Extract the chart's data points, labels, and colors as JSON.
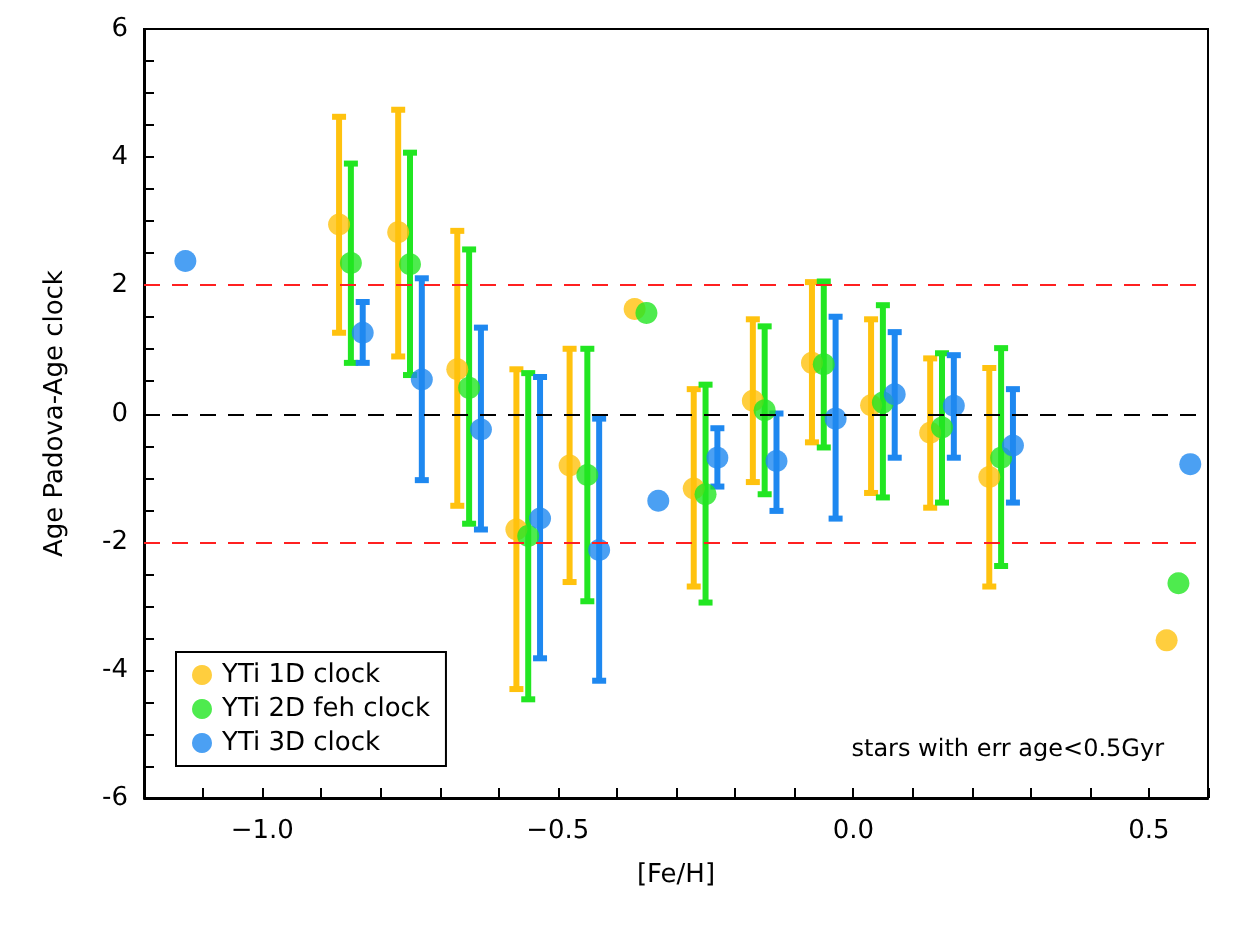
{
  "chart_data": {
    "type": "scatter",
    "xlabel": "[Fe/H]",
    "ylabel": "Age Padova-Age clock",
    "annotations": [
      "stars with err age<0.5Gyr"
    ],
    "xlim": [
      -1.2,
      0.6
    ],
    "ylim": [
      -6,
      6
    ],
    "xticks": [
      {
        "value": -1.2,
        "label": null
      },
      {
        "value": -1.1,
        "label": null
      },
      {
        "value": -1,
        "label": "−1.0"
      },
      {
        "value": -0.9,
        "label": null
      },
      {
        "value": -0.8,
        "label": null
      },
      {
        "value": -0.7,
        "label": null
      },
      {
        "value": -0.6,
        "label": null
      },
      {
        "value": -0.5,
        "label": "−0.5"
      },
      {
        "value": -0.4,
        "label": null
      },
      {
        "value": -0.3,
        "label": null
      },
      {
        "value": -0.2,
        "label": null
      },
      {
        "value": -0.1,
        "label": null
      },
      {
        "value": 0,
        "label": "0.0"
      },
      {
        "value": 0.1,
        "label": null
      },
      {
        "value": 0.2,
        "label": null
      },
      {
        "value": 0.3,
        "label": null
      },
      {
        "value": 0.4,
        "label": null
      },
      {
        "value": 0.5,
        "label": "0.5"
      },
      {
        "value": 0.6,
        "label": null
      }
    ],
    "yticks": [
      -6,
      {
        "value": -5.5,
        "label": null
      },
      {
        "value": -5,
        "label": null
      },
      {
        "value": -4.5,
        "label": null
      },
      -4,
      {
        "value": -3.5,
        "label": null
      },
      {
        "value": -3,
        "label": null
      },
      {
        "value": -2.5,
        "label": null
      },
      -2,
      {
        "value": -1.5,
        "label": null
      },
      {
        "value": -1,
        "label": null
      },
      {
        "value": -0.5,
        "label": null
      },
      0,
      {
        "value": 0.5,
        "label": null
      },
      {
        "value": 1,
        "label": null
      },
      {
        "value": 1.5,
        "label": null
      },
      2,
      {
        "value": 2.5,
        "label": null
      },
      {
        "value": 3,
        "label": null
      },
      {
        "value": 3.5,
        "label": null
      },
      4,
      {
        "value": 4.5,
        "label": null
      },
      {
        "value": 5,
        "label": null
      },
      {
        "value": 5.5,
        "label": null
      },
      6
    ],
    "grid": false,
    "legend": "bottom left",
    "marker": "circle",
    "ref_lines": [
      {
        "axis": "y",
        "value": 2,
        "color": "#ff2020",
        "line_style": "dashed"
      },
      {
        "axis": "y",
        "value": 0,
        "color": "#000000",
        "line_style": "dashed"
      },
      {
        "axis": "y",
        "value": -2,
        "color": "#ff2020",
        "line_style": "dashed"
      }
    ],
    "series": [
      {
        "name": "YTi 1D clock",
        "color": "#ffc20e",
        "x": [
          -0.87,
          -0.77,
          -0.67,
          -0.57,
          -0.48,
          -0.37,
          -0.27,
          -0.17,
          -0.07,
          0.03,
          0.13,
          0.23,
          0.53
        ],
        "values": [
          2.95,
          2.83,
          0.69,
          -1.81,
          -0.81,
          1.63,
          -1.17,
          0.2,
          0.79,
          0.13,
          -0.3,
          -0.99,
          -3.54
        ],
        "errors": [
          [
            1.26,
            4.63
          ],
          [
            0.89,
            4.74
          ],
          [
            -1.44,
            2.85
          ],
          [
            -4.3,
            0.69
          ],
          [
            -2.63,
            1.01
          ],
          null,
          [
            -2.7,
            0.38
          ],
          [
            -1.07,
            1.47
          ],
          [
            -0.45,
            2.05
          ],
          [
            -1.24,
            1.47
          ],
          [
            -1.47,
            0.86
          ],
          [
            -2.7,
            0.71
          ],
          null
        ]
      },
      {
        "name": "YTi 2D feh clock",
        "color": "#22e622",
        "x": [
          -0.85,
          -0.75,
          -0.65,
          -0.55,
          -0.45,
          -0.35,
          -0.25,
          -0.15,
          -0.05,
          0.05,
          0.15,
          0.25,
          0.55
        ],
        "values": [
          2.35,
          2.33,
          0.4,
          -1.91,
          -0.96,
          1.57,
          -1.26,
          0.05,
          0.77,
          0.17,
          -0.22,
          -0.69,
          -2.65
        ],
        "errors": [
          [
            0.79,
            3.9
          ],
          [
            0.6,
            4.07
          ],
          [
            -1.72,
            2.56
          ],
          [
            -4.46,
            0.63
          ],
          [
            -2.93,
            1.01
          ],
          null,
          [
            -2.95,
            0.45
          ],
          [
            -1.26,
            1.36
          ],
          [
            -0.53,
            2.06
          ],
          [
            -1.31,
            1.69
          ],
          [
            -1.39,
            0.94
          ],
          [
            -2.38,
            1.02
          ],
          null
        ]
      },
      {
        "name": "YTi 3D clock",
        "color": "#1e88f0",
        "x": [
          -1.13,
          -0.83,
          -0.73,
          -0.63,
          -0.53,
          -0.43,
          -0.33,
          -0.23,
          -0.13,
          -0.03,
          0.07,
          0.17,
          0.27,
          0.57
        ],
        "values": [
          2.38,
          1.26,
          0.53,
          -0.25,
          -1.64,
          -2.13,
          -1.36,
          -0.69,
          -0.74,
          -0.08,
          0.3,
          0.12,
          -0.5,
          -0.79
        ],
        "errors": [
          null,
          [
            0.79,
            1.74
          ],
          [
            -1.04,
            2.11
          ],
          [
            -1.81,
            1.34
          ],
          [
            -3.82,
            0.57
          ],
          [
            -4.17,
            -0.08
          ],
          null,
          [
            -1.14,
            -0.23
          ],
          [
            -1.52,
            0
          ],
          [
            -1.64,
            1.51
          ],
          [
            -0.69,
            1.27
          ],
          [
            -0.69,
            0.91
          ],
          [
            -1.39,
            0.38
          ],
          null
        ]
      }
    ]
  }
}
